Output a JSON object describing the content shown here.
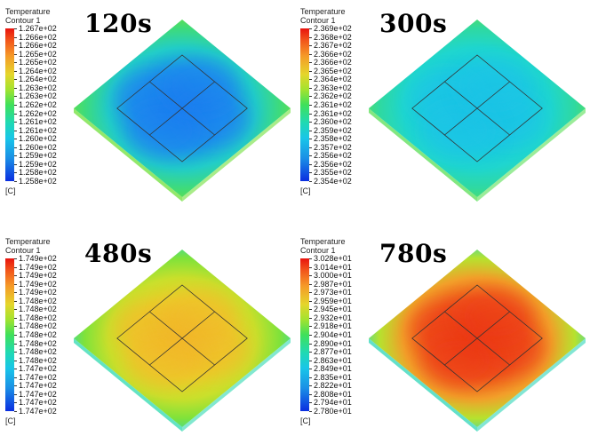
{
  "panels": [
    {
      "time": "120s",
      "legend_title": "Temperature",
      "legend_subtitle": "Contour 1",
      "labels": [
        "1.267e+02",
        "1.266e+02",
        "1.266e+02",
        "1.265e+02",
        "1.265e+02",
        "1.264e+02",
        "1.264e+02",
        "1.263e+02",
        "1.263e+02",
        "1.262e+02",
        "1.262e+02",
        "1.261e+02",
        "1.261e+02",
        "1.260e+02",
        "1.260e+02",
        "1.259e+02",
        "1.259e+02",
        "1.258e+02",
        "1.258e+02"
      ],
      "unit": "[C]",
      "colors": {
        "outer": "#6fe03a",
        "ring": "#3edb7a",
        "mid": "#22cdc8",
        "inner": "#1d9ae8",
        "core": "#1d7ff0"
      }
    },
    {
      "time": "300s",
      "legend_title": "Temperature",
      "legend_subtitle": "Contour 1",
      "labels": [
        "2.369e+02",
        "2.368e+02",
        "2.367e+02",
        "2.366e+02",
        "2.366e+02",
        "2.365e+02",
        "2.364e+02",
        "2.363e+02",
        "2.362e+02",
        "2.361e+02",
        "2.361e+02",
        "2.360e+02",
        "2.359e+02",
        "2.358e+02",
        "2.357e+02",
        "2.356e+02",
        "2.356e+02",
        "2.355e+02",
        "2.354e+02"
      ],
      "unit": "[C]",
      "colors": {
        "outer": "#59df55",
        "ring": "#2fd9a0",
        "mid": "#1fd6cf",
        "inner": "#1ccbe0",
        "core": "#1cc4e6"
      }
    },
    {
      "time": "480s",
      "legend_title": "Temperature",
      "legend_subtitle": "Contour 1",
      "labels": [
        "1.749e+02",
        "1.749e+02",
        "1.749e+02",
        "1.749e+02",
        "1.749e+02",
        "1.748e+02",
        "1.748e+02",
        "1.748e+02",
        "1.748e+02",
        "1.748e+02",
        "1.748e+02",
        "1.748e+02",
        "1.748e+02",
        "1.747e+02",
        "1.747e+02",
        "1.747e+02",
        "1.747e+02",
        "1.747e+02",
        "1.747e+02"
      ],
      "unit": "[C]",
      "colors": {
        "outer": "#2fd9b0",
        "ring": "#7fe23a",
        "mid": "#c9e02c",
        "inner": "#e9d22a",
        "core": "#f2b82a"
      }
    },
    {
      "time": "780s",
      "legend_title": "Temperature",
      "legend_subtitle": "Contour 1",
      "labels": [
        "3.028e+01",
        "3.014e+01",
        "3.000e+01",
        "2.987e+01",
        "2.973e+01",
        "2.959e+01",
        "2.945e+01",
        "2.932e+01",
        "2.918e+01",
        "2.904e+01",
        "2.890e+01",
        "2.877e+01",
        "2.863e+01",
        "2.849e+01",
        "2.835e+01",
        "2.822e+01",
        "2.808e+01",
        "2.794e+01",
        "2.780e+01"
      ],
      "unit": "[C]",
      "colors": {
        "outer": "#2fd6b8",
        "ring": "#b6e22e",
        "mid": "#f2a02a",
        "inner": "#f0591d",
        "core": "#ec3a16"
      }
    }
  ]
}
